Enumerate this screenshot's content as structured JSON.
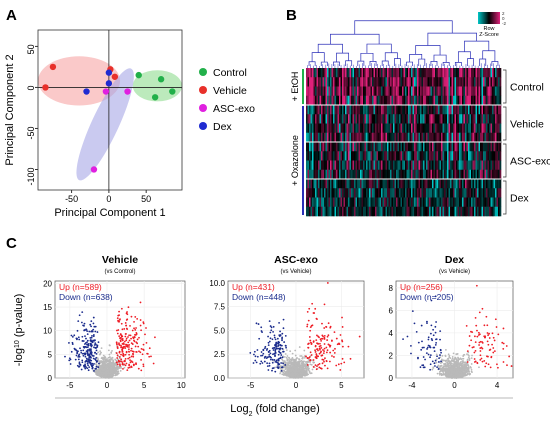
{
  "panels": {
    "A": {
      "label": "A"
    },
    "B": {
      "label": "B"
    },
    "C": {
      "label": "C"
    }
  },
  "chart_data": [
    {
      "panel": "A",
      "type": "scatter",
      "xlabel": "Principal Component 1",
      "ylabel": "Principal Component 2",
      "xlim": [
        -95,
        98
      ],
      "ylim": [
        -125,
        70
      ],
      "xticks": [
        -50,
        0,
        50
      ],
      "yticks": [
        -100,
        -50,
        0,
        50
      ],
      "grid": false,
      "legend_position": "right",
      "series": [
        {
          "name": "Control",
          "color": "#22b04a",
          "points": [
            [
              40,
              15
            ],
            [
              70,
              10
            ],
            [
              85,
              -5
            ],
            [
              62,
              -12
            ]
          ]
        },
        {
          "name": "Vehicle",
          "color": "#e8302a",
          "points": [
            [
              -75,
              25
            ],
            [
              -85,
              0
            ],
            [
              2,
              22
            ],
            [
              8,
              13
            ]
          ]
        },
        {
          "name": "ASC-exo",
          "color": "#e020e0",
          "points": [
            [
              -20,
              -100
            ],
            [
              25,
              -5
            ],
            [
              -4,
              -5
            ]
          ]
        },
        {
          "name": "Dex",
          "color": "#1f2bd1",
          "points": [
            [
              -30,
              -5
            ],
            [
              0,
              18
            ],
            [
              0,
              5
            ]
          ]
        }
      ],
      "ellipses": [
        {
          "group": "Control",
          "color": "#8fdc8f",
          "cx": 65,
          "cy": 2,
          "rx": 33,
          "ry": 19,
          "angle": 0
        },
        {
          "group": "Vehicle",
          "color": "#f7a5a5",
          "cx": -40,
          "cy": 8,
          "rx": 55,
          "ry": 30,
          "angle": 0
        },
        {
          "group": "Dex",
          "color": "#a7a6e6",
          "cx": -5,
          "cy": -45,
          "rx": 18,
          "ry": 75,
          "angle": 25
        }
      ]
    },
    {
      "panel": "B",
      "type": "heatmap",
      "color_key_title": "Row\nZ-Score",
      "color_key_ticks": [
        "2",
        "0",
        "-2"
      ],
      "colorscale": [
        "#00c8c8",
        "#000000",
        "#e0207a"
      ],
      "row_groups": [
        "Control",
        "Vehicle",
        "ASC-exo",
        "Dex"
      ],
      "side_labels": [
        "+ EtOH",
        "+ Oxazolone"
      ]
    },
    {
      "panel": "C",
      "type": "scatter",
      "shared_xlabel": "Log2 (fold change)",
      "shared_ylabel": "-log10 (p-value)",
      "subplots": [
        {
          "title": "Vehicle",
          "subtitle": "(vs Control)",
          "up_label": "Up (n=589)",
          "down_label": "Down (n=638)",
          "xlim": [
            -7,
            10.5
          ],
          "ylim": [
            0,
            20.5
          ],
          "xticks": [
            -5,
            0,
            5,
            10
          ],
          "yticks": [
            0,
            5,
            10,
            15,
            20
          ],
          "up_count": 589,
          "down_count": 638
        },
        {
          "title": "ASC-exo",
          "subtitle": "(vs Vehicle)",
          "up_label": "Up (n=431)",
          "down_label": "Down (n=448)",
          "xlim": [
            -7.5,
            7.5
          ],
          "ylim": [
            0,
            10.2
          ],
          "xticks": [
            -5,
            0,
            5
          ],
          "yticks": [
            0.0,
            2.5,
            5.0,
            7.5,
            10.0
          ],
          "up_count": 431,
          "down_count": 448
        },
        {
          "title": "Dex",
          "subtitle": "(vs Vehicle)",
          "up_label": "Up (n=256)",
          "down_label": "Down (n=205)",
          "xlim": [
            -5.5,
            5.5
          ],
          "ylim": [
            0,
            8.6
          ],
          "xticks": [
            -4,
            0,
            4
          ],
          "yticks": [
            0,
            2,
            4,
            6,
            8
          ],
          "up_count": 256,
          "down_count": 205
        }
      ],
      "colors": {
        "up": "#ee1c25",
        "down": "#1a2b8c",
        "ns": "#b9b9b9"
      }
    }
  ]
}
